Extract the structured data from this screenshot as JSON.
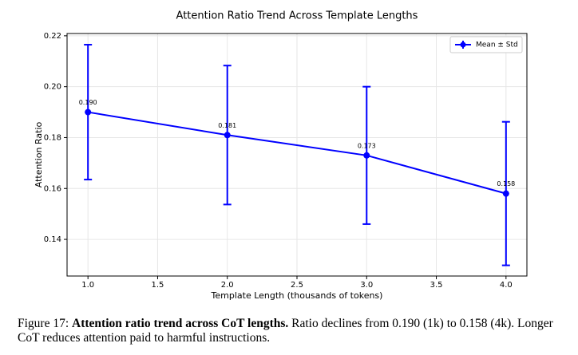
{
  "chart_data": {
    "type": "line",
    "title": "Attention Ratio Trend Across Template Lengths",
    "x_label": "Template Length (thousands of tokens)",
    "y_label": "Attention Ratio",
    "x": [
      1,
      2,
      3,
      4
    ],
    "series": [
      {
        "name": "Mean ± Std",
        "color": "#0000ff",
        "values": [
          0.19,
          0.181,
          0.173,
          0.158
        ],
        "value_labels": [
          "0.190",
          "0.181",
          "0.173",
          "0.158"
        ],
        "errors": [
          0.0265,
          0.0273,
          0.027,
          0.0282
        ]
      }
    ],
    "xlim": [
      0.85,
      4.15
    ],
    "xticks": [
      {
        "value": 1,
        "label": "1.0"
      },
      1.5,
      {
        "value": 2,
        "label": "2.0"
      },
      2.5,
      {
        "value": 3,
        "label": "3.0"
      },
      3.5,
      {
        "value": 4,
        "label": "4.0"
      }
    ],
    "ylim": [
      0.1256,
      0.2209
    ],
    "yticks": [
      0.14,
      0.16,
      0.18,
      {
        "value": 0.2,
        "label": "0.20"
      },
      0.22
    ],
    "grid": true,
    "legend": "upper-right"
  },
  "caption": {
    "label": "Figure 17:",
    "title": "Attention ratio trend across CoT lengths.",
    "text": "Ratio declines from 0.190 (1k) to 0.158 (4k). Longer CoT reduces attention paid to harmful instructions."
  }
}
